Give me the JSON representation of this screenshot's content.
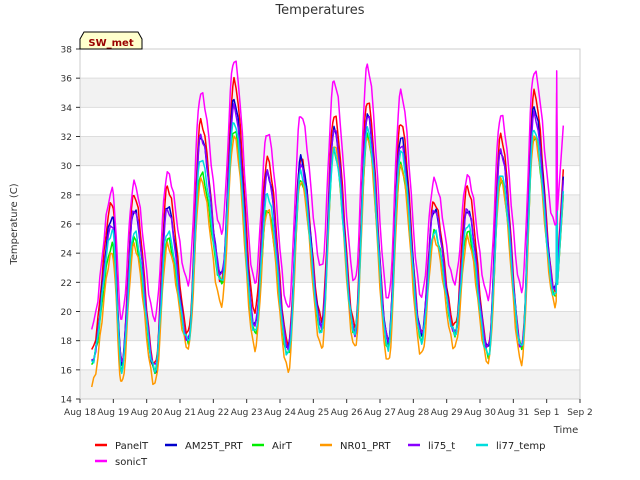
{
  "chart_data": {
    "type": "line",
    "title": "Temperatures",
    "xlabel": "Time",
    "ylabel": "Temperature (C)",
    "badge": "SW_met",
    "ylim": [
      14,
      38
    ],
    "yticks": [
      14,
      16,
      18,
      20,
      22,
      24,
      26,
      28,
      30,
      32,
      34,
      36,
      38
    ],
    "xlim": [
      0,
      15
    ],
    "xticks": [
      {
        "x": 0,
        "label": "Aug 18"
      },
      {
        "x": 1,
        "label": "Aug 19"
      },
      {
        "x": 2,
        "label": "Aug 20"
      },
      {
        "x": 3,
        "label": "Aug 21"
      },
      {
        "x": 4,
        "label": "Aug 22"
      },
      {
        "x": 5,
        "label": "Aug 23"
      },
      {
        "x": 6,
        "label": "Aug 24"
      },
      {
        "x": 7,
        "label": "Aug 25"
      },
      {
        "x": 8,
        "label": "Aug 26"
      },
      {
        "x": 9,
        "label": "Aug 27"
      },
      {
        "x": 10,
        "label": "Aug 28"
      },
      {
        "x": 11,
        "label": "Aug 29"
      },
      {
        "x": 12,
        "label": "Aug 30"
      },
      {
        "x": 13,
        "label": "Aug 31"
      },
      {
        "x": 14,
        "label": "Sep 1"
      },
      {
        "x": 15,
        "label": "Sep 2"
      }
    ],
    "grid": "horizontal bands",
    "legend_position": "bottom",
    "days_x": [
      0.35,
      1.0,
      2.0,
      3.0,
      4.0,
      5.0,
      6.0,
      7.0,
      8.0,
      9.0,
      10.0,
      11.0,
      12.0,
      13.0,
      14.0
    ],
    "series": [
      {
        "name": "PanelT",
        "color": "#ff0000",
        "min": [
          17.3,
          16.5,
          16.3,
          18.5,
          22.0,
          20.0,
          17.8,
          19.5,
          19.0,
          18.0,
          18.5,
          19.0,
          17.5,
          17.5,
          21.5
        ],
        "max": [
          27.5,
          28.0,
          28.5,
          33.0,
          35.8,
          30.5,
          30.5,
          33.5,
          34.5,
          33.0,
          27.5,
          28.5,
          32.0,
          35.0,
          35.0
        ]
      },
      {
        "name": "AM25T_PRT",
        "color": "#0000cc",
        "min": [
          16.5,
          16.5,
          15.8,
          18.0,
          22.5,
          19.0,
          17.5,
          19.0,
          18.5,
          18.0,
          18.5,
          18.5,
          17.5,
          17.5,
          21.5
        ],
        "max": [
          26.5,
          27.0,
          27.3,
          32.0,
          34.5,
          29.5,
          30.5,
          32.5,
          33.5,
          32.0,
          27.0,
          27.0,
          31.0,
          34.0,
          34.0
        ]
      },
      {
        "name": "AirT",
        "color": "#00ee00",
        "min": [
          16.5,
          16.0,
          16.0,
          18.0,
          22.0,
          18.5,
          17.0,
          18.5,
          18.5,
          17.5,
          18.0,
          18.5,
          17.0,
          17.5,
          21.0
        ],
        "max": [
          24.5,
          25.0,
          25.0,
          29.5,
          32.5,
          27.0,
          29.0,
          31.0,
          32.0,
          30.0,
          25.5,
          25.5,
          29.0,
          32.0,
          32.0
        ]
      },
      {
        "name": "NR01_PRT",
        "color": "#ff9900",
        "min": [
          15.0,
          15.0,
          15.0,
          17.5,
          20.5,
          17.5,
          16.0,
          17.5,
          17.5,
          16.5,
          17.0,
          17.5,
          16.5,
          16.5,
          20.5
        ],
        "max": [
          24.0,
          24.5,
          24.5,
          29.0,
          32.0,
          27.0,
          29.0,
          31.5,
          32.0,
          30.0,
          25.0,
          25.0,
          29.0,
          32.0,
          32.5
        ]
      },
      {
        "name": "li75_t",
        "color": "#8800ff",
        "min": [
          16.5,
          16.5,
          16.2,
          18.0,
          22.5,
          19.0,
          17.5,
          19.0,
          18.5,
          18.0,
          18.5,
          18.5,
          17.5,
          17.5,
          21.5
        ],
        "max": [
          26.0,
          27.0,
          27.0,
          32.0,
          34.0,
          29.5,
          30.0,
          32.5,
          33.5,
          31.5,
          27.0,
          27.0,
          31.0,
          33.5,
          33.5
        ]
      },
      {
        "name": "li77_temp",
        "color": "#00dddd",
        "min": [
          16.5,
          16.0,
          16.0,
          18.0,
          22.0,
          18.5,
          17.0,
          18.5,
          18.5,
          17.5,
          18.0,
          18.5,
          17.0,
          17.5,
          21.0
        ],
        "max": [
          25.5,
          25.5,
          25.5,
          30.5,
          33.0,
          28.0,
          29.5,
          31.0,
          32.5,
          31.0,
          25.5,
          26.0,
          29.5,
          32.5,
          32.5
        ]
      },
      {
        "name": "sonicT",
        "color": "#ff00ff",
        "min": [
          19.0,
          19.5,
          19.5,
          22.0,
          25.5,
          22.0,
          20.2,
          23.0,
          22.0,
          20.8,
          21.0,
          22.0,
          21.0,
          21.5,
          26.0
        ],
        "max": [
          28.3,
          28.8,
          29.5,
          35.0,
          37.3,
          32.3,
          33.5,
          35.8,
          36.8,
          35.0,
          29.0,
          29.3,
          33.5,
          36.5,
          36.5
        ]
      }
    ]
  }
}
